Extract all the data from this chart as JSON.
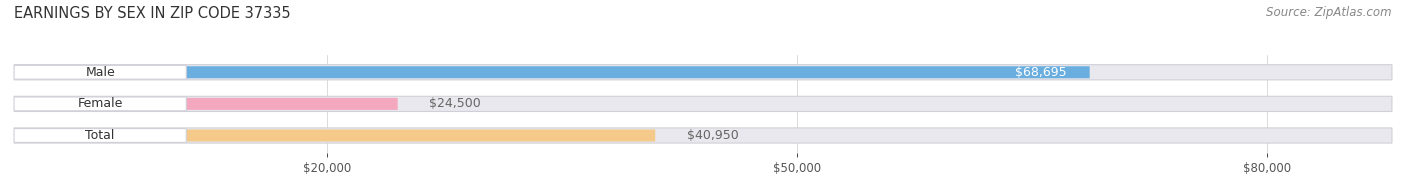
{
  "title": "EARNINGS BY SEX IN ZIP CODE 37335",
  "source": "Source: ZipAtlas.com",
  "categories": [
    "Male",
    "Female",
    "Total"
  ],
  "values": [
    68695,
    24500,
    40950
  ],
  "bar_colors": [
    "#6aaee0",
    "#f4a8c0",
    "#f5c98a"
  ],
  "track_color": "#e8e8ee",
  "track_edge_color": "#d0d0d8",
  "value_labels": [
    "$68,695",
    "$24,500",
    "$40,950"
  ],
  "value_label_colors": [
    "#ffffff",
    "#888888",
    "#888888"
  ],
  "xmin": 0,
  "xmax": 88000,
  "xticks": [
    20000,
    50000,
    80000
  ],
  "xticklabels": [
    "$20,000",
    "$50,000",
    "$80,000"
  ],
  "background_color": "#ffffff",
  "title_fontsize": 10.5,
  "source_fontsize": 8.5,
  "label_fontsize": 9,
  "tick_fontsize": 8.5
}
